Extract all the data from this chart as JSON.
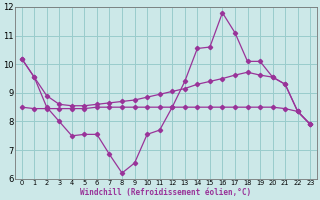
{
  "xlabel": "Windchill (Refroidissement éolien,°C)",
  "bg_color": "#cce8e8",
  "grid_color": "#99cccc",
  "line_color": "#993399",
  "spine_color": "#777777",
  "xlim": [
    -0.5,
    23.5
  ],
  "ylim": [
    6,
    12
  ],
  "yticks": [
    6,
    7,
    8,
    9,
    10,
    11,
    12
  ],
  "xticks": [
    0,
    1,
    2,
    3,
    4,
    5,
    6,
    7,
    8,
    9,
    10,
    11,
    12,
    13,
    14,
    15,
    16,
    17,
    18,
    19,
    20,
    21,
    22,
    23
  ],
  "series1_x": [
    0,
    1,
    2,
    3,
    4,
    5,
    6,
    7,
    8,
    9,
    10,
    11,
    12,
    13,
    14,
    15,
    16,
    17,
    18,
    19,
    20,
    21,
    22,
    23
  ],
  "series1_y": [
    10.2,
    9.55,
    8.5,
    8.0,
    7.5,
    7.55,
    7.55,
    6.85,
    6.2,
    6.55,
    7.55,
    7.7,
    8.5,
    9.4,
    10.55,
    10.6,
    11.8,
    11.1,
    10.1,
    10.1,
    9.55,
    9.3,
    8.35,
    7.9
  ],
  "series2_x": [
    0,
    1,
    2,
    3,
    4,
    5,
    6,
    7,
    8,
    9,
    10,
    11,
    12,
    13,
    14,
    15,
    16,
    17,
    18,
    19,
    20,
    21,
    22,
    23
  ],
  "series2_y": [
    10.2,
    9.55,
    8.9,
    8.6,
    8.55,
    8.55,
    8.6,
    8.65,
    8.7,
    8.75,
    8.85,
    8.95,
    9.05,
    9.15,
    9.3,
    9.4,
    9.5,
    9.62,
    9.72,
    9.62,
    9.55,
    9.3,
    8.35,
    7.9
  ],
  "series3_x": [
    0,
    1,
    2,
    3,
    4,
    5,
    6,
    7,
    8,
    9,
    10,
    11,
    12,
    13,
    14,
    15,
    16,
    17,
    18,
    19,
    20,
    21,
    22,
    23
  ],
  "series3_y": [
    8.5,
    8.45,
    8.45,
    8.45,
    8.45,
    8.45,
    8.5,
    8.5,
    8.5,
    8.5,
    8.5,
    8.5,
    8.5,
    8.5,
    8.5,
    8.5,
    8.5,
    8.5,
    8.5,
    8.5,
    8.5,
    8.45,
    8.35,
    7.9
  ]
}
